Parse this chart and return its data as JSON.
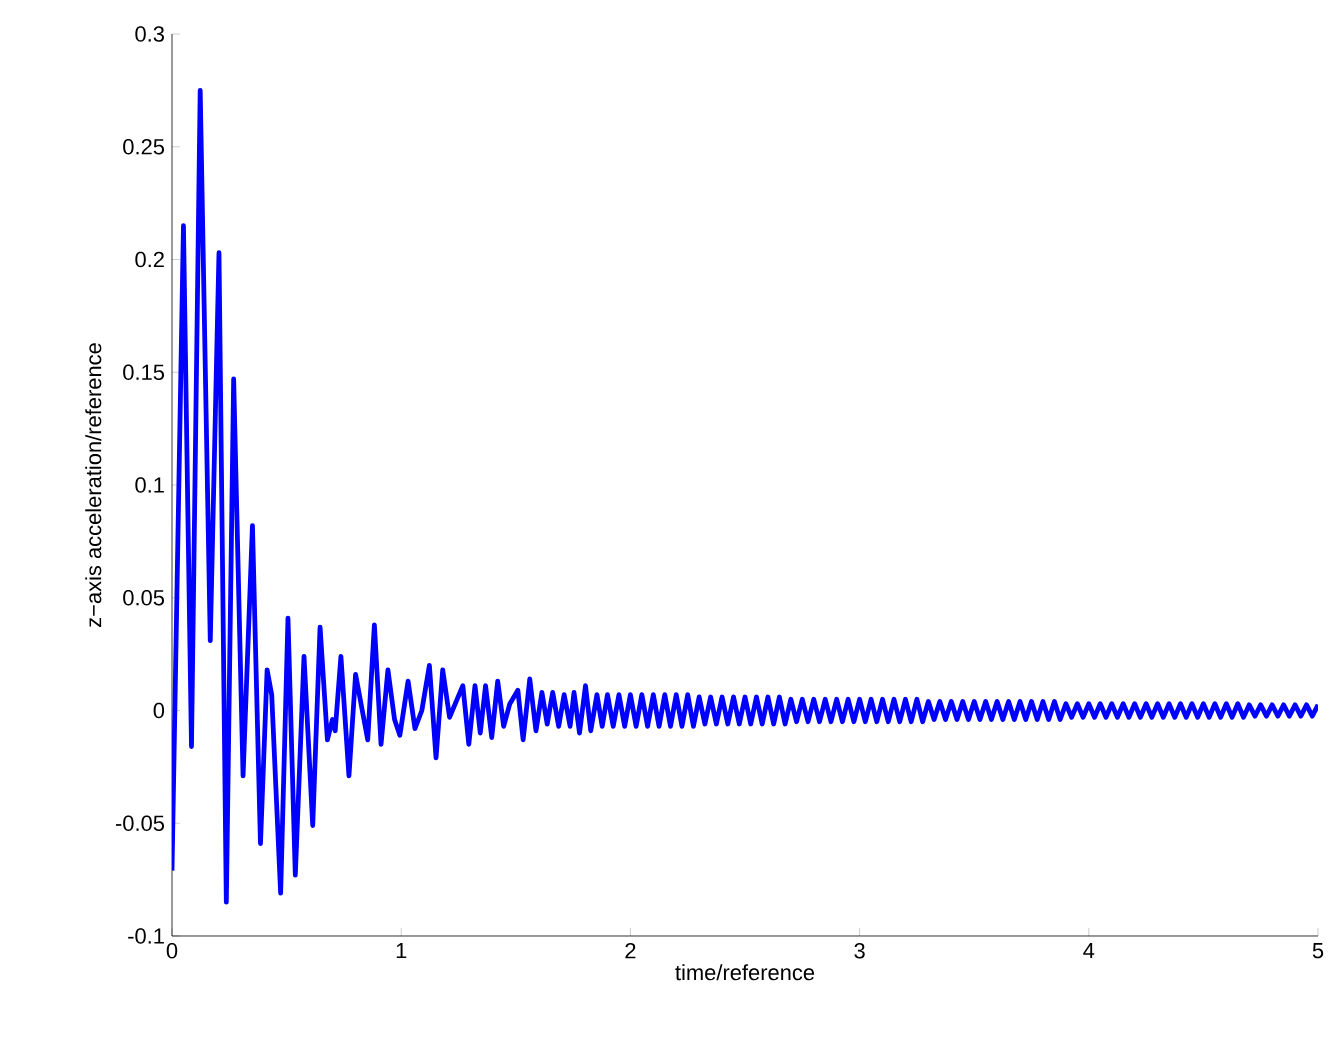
{
  "chart_data": {
    "type": "line",
    "xlabel": "time/reference",
    "ylabel": "z−axis acceleration/reference",
    "xlim": [
      0,
      5
    ],
    "ylim": [
      -0.1,
      0.3
    ],
    "xticks": [
      0,
      1,
      2,
      3,
      4,
      5
    ],
    "yticks": [
      -0.1,
      -0.05,
      0,
      0.05,
      0.1,
      0.15,
      0.2,
      0.25,
      0.3
    ],
    "grid": false,
    "marker": "none",
    "line_style": "solid",
    "series": [
      {
        "color": "#0000ff",
        "x": [
          0,
          0.05,
          0.085,
          0.123,
          0.167,
          0.205,
          0.237,
          0.269,
          0.31,
          0.351,
          0.386,
          0.415,
          0.435,
          0.474,
          0.506,
          0.538,
          0.576,
          0.614,
          0.646,
          0.678,
          0.7,
          0.712,
          0.737,
          0.772,
          0.801,
          0.854,
          0.883,
          0.912,
          0.942,
          0.971,
          0.994,
          1.03,
          1.06,
          1.09,
          1.123,
          1.152,
          1.181,
          1.211,
          1.269,
          1.295,
          1.322,
          1.345,
          1.368,
          1.395,
          1.421,
          1.447,
          1.474,
          1.509,
          1.532,
          1.561,
          1.588,
          1.614,
          1.637,
          1.661,
          1.687,
          1.711,
          1.737,
          1.754,
          1.778,
          1.804,
          1.827,
          1.854,
          1.877,
          1.9,
          1.925,
          1.95,
          1.975,
          2.0,
          2.025,
          2.05,
          2.075,
          2.1,
          2.125,
          2.15,
          2.175,
          2.2,
          2.225,
          2.25,
          2.275,
          2.3,
          2.325,
          2.35,
          2.375,
          2.4,
          2.425,
          2.45,
          2.475,
          2.5,
          2.525,
          2.55,
          2.575,
          2.6,
          2.625,
          2.65,
          2.675,
          2.7,
          2.725,
          2.75,
          2.775,
          2.8,
          2.825,
          2.85,
          2.875,
          2.9,
          2.925,
          2.95,
          2.975,
          3.0,
          3.025,
          3.05,
          3.075,
          3.1,
          3.125,
          3.15,
          3.175,
          3.2,
          3.225,
          3.25,
          3.275,
          3.3,
          3.325,
          3.35,
          3.375,
          3.4,
          3.425,
          3.45,
          3.475,
          3.5,
          3.525,
          3.55,
          3.575,
          3.6,
          3.625,
          3.65,
          3.675,
          3.7,
          3.725,
          3.75,
          3.775,
          3.8,
          3.825,
          3.85,
          3.875,
          3.9,
          3.925,
          3.95,
          3.975,
          4.0,
          4.025,
          4.05,
          4.075,
          4.1,
          4.125,
          4.15,
          4.175,
          4.2,
          4.225,
          4.25,
          4.275,
          4.3,
          4.325,
          4.35,
          4.375,
          4.4,
          4.425,
          4.45,
          4.475,
          4.5,
          4.525,
          4.55,
          4.575,
          4.6,
          4.625,
          4.65,
          4.675,
          4.7,
          4.725,
          4.75,
          4.775,
          4.8,
          4.825,
          4.85,
          4.875,
          4.9,
          4.925,
          4.95,
          4.975,
          5.0
        ],
        "values": [
          -0.071,
          0.215,
          -0.016,
          0.275,
          0.031,
          0.203,
          -0.085,
          0.147,
          -0.029,
          0.082,
          -0.059,
          0.018,
          0.007,
          -0.081,
          0.041,
          -0.073,
          0.024,
          -0.051,
          0.037,
          -0.013,
          -0.004,
          -0.009,
          0.024,
          -0.029,
          0.016,
          -0.013,
          0.038,
          -0.015,
          0.018,
          -0.004,
          -0.011,
          0.013,
          -0.008,
          0.0,
          0.02,
          -0.021,
          0.018,
          -0.003,
          0.011,
          -0.015,
          0.011,
          -0.01,
          0.011,
          -0.012,
          0.013,
          -0.007,
          0.003,
          0.009,
          -0.013,
          0.014,
          -0.009,
          0.008,
          -0.006,
          0.008,
          -0.007,
          0.007,
          -0.007,
          0.008,
          -0.01,
          0.011,
          -0.009,
          0.007,
          -0.007,
          0.007,
          -0.007,
          0.007,
          -0.007,
          0.007,
          -0.007,
          0.007,
          -0.007,
          0.007,
          -0.007,
          0.007,
          -0.007,
          0.007,
          -0.007,
          0.007,
          -0.007,
          0.006,
          -0.006,
          0.006,
          -0.006,
          0.006,
          -0.006,
          0.006,
          -0.006,
          0.006,
          -0.006,
          0.006,
          -0.006,
          0.006,
          -0.006,
          0.006,
          -0.006,
          0.005,
          -0.005,
          0.005,
          -0.005,
          0.005,
          -0.005,
          0.005,
          -0.005,
          0.005,
          -0.005,
          0.005,
          -0.005,
          0.005,
          -0.005,
          0.005,
          -0.005,
          0.005,
          -0.005,
          0.005,
          -0.005,
          0.005,
          -0.005,
          0.005,
          -0.005,
          0.004,
          -0.004,
          0.004,
          -0.004,
          0.004,
          -0.004,
          0.004,
          -0.004,
          0.004,
          -0.004,
          0.004,
          -0.004,
          0.004,
          -0.004,
          0.004,
          -0.004,
          0.004,
          -0.004,
          0.004,
          -0.004,
          0.004,
          -0.004,
          0.004,
          -0.004,
          0.003,
          -0.003,
          0.003,
          -0.003,
          0.003,
          -0.003,
          0.003,
          -0.003,
          0.003,
          -0.003,
          0.003,
          -0.003,
          0.003,
          -0.003,
          0.003,
          -0.003,
          0.003,
          -0.003,
          0.003,
          -0.003,
          0.003,
          -0.003,
          0.003,
          -0.003,
          0.003,
          -0.003,
          0.003,
          -0.003,
          0.003,
          -0.003,
          0.003,
          -0.003,
          0.0025,
          -0.0025,
          0.0025,
          -0.0025,
          0.0025,
          -0.0025,
          0.0025,
          -0.0025,
          0.0025,
          -0.0025,
          0.0025,
          -0.0025,
          0.0025
        ]
      }
    ]
  }
}
